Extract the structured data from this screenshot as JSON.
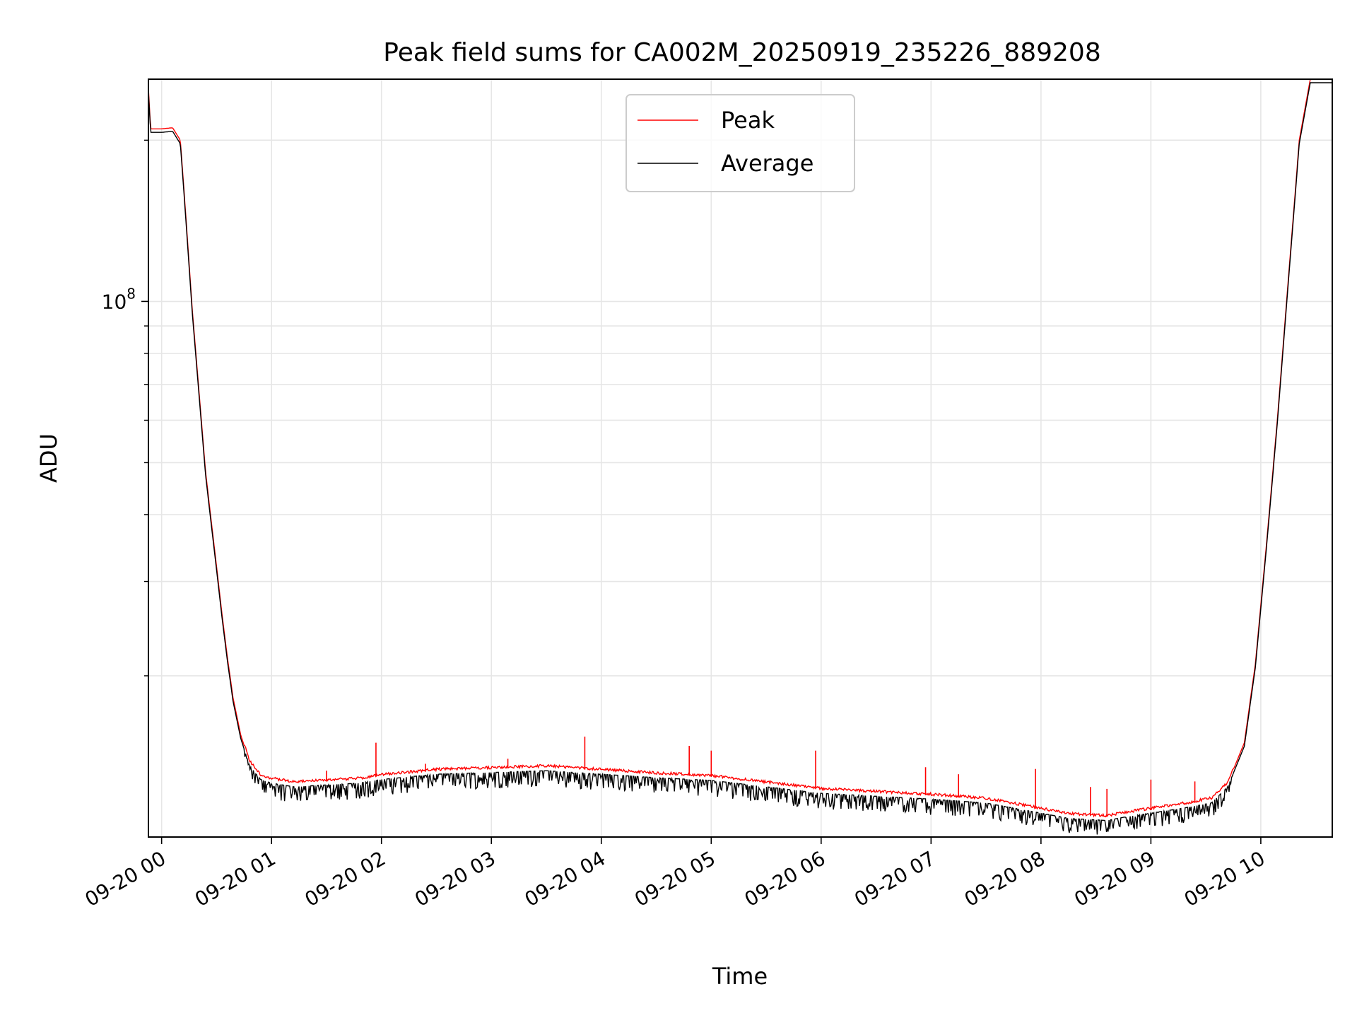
{
  "chart_data": {
    "type": "line",
    "title": "Peak field sums for CA002M_20250919_235226_889208",
    "xlabel": "Time",
    "ylabel": "ADU",
    "yscale": "log",
    "ylim": [
      10000000.0,
      260000000.0
    ],
    "xlim_hours": [
      -0.12,
      10.65
    ],
    "x_unit": "hours after 09-20 00:00",
    "grid": true,
    "legend_position": "top-center",
    "x_ticks": [
      {
        "value": 0,
        "label": "09-20 00"
      },
      {
        "value": 1,
        "label": "09-20 01"
      },
      {
        "value": 2,
        "label": "09-20 02"
      },
      {
        "value": 3,
        "label": "09-20 03"
      },
      {
        "value": 4,
        "label": "09-20 04"
      },
      {
        "value": 5,
        "label": "09-20 05"
      },
      {
        "value": 6,
        "label": "09-20 06"
      },
      {
        "value": 7,
        "label": "09-20 07"
      },
      {
        "value": 8,
        "label": "09-20 08"
      },
      {
        "value": 9,
        "label": "09-20 09"
      },
      {
        "value": 10,
        "label": "09-20 10"
      }
    ],
    "y_major_ticks": [
      {
        "value": 100000000,
        "base": "10",
        "exp": "8"
      }
    ],
    "y_minor_ticks": [
      20000000,
      30000000,
      40000000,
      50000000,
      60000000,
      70000000,
      80000000,
      90000000,
      200000000
    ],
    "series": [
      {
        "name": "Peak",
        "color": "#ff0000",
        "points": [
          [
            -0.12,
            250000000
          ],
          [
            -0.1,
            210000000
          ],
          [
            0.0,
            210000000
          ],
          [
            0.1,
            211000000
          ],
          [
            0.17,
            200000000
          ],
          [
            0.22,
            145000000
          ],
          [
            0.28,
            96000000
          ],
          [
            0.33,
            72000000
          ],
          [
            0.4,
            48000000
          ],
          [
            0.5,
            32000000
          ],
          [
            0.55,
            26000000
          ],
          [
            0.6,
            21500000
          ],
          [
            0.65,
            18200000
          ],
          [
            0.72,
            15500000
          ],
          [
            0.8,
            13800000
          ],
          [
            0.9,
            13000000
          ],
          [
            1.0,
            12800000
          ],
          [
            1.2,
            12600000
          ],
          [
            1.5,
            12700000
          ],
          [
            1.8,
            12800000
          ],
          [
            2.0,
            13000000
          ],
          [
            2.5,
            13300000
          ],
          [
            3.0,
            13400000
          ],
          [
            3.5,
            13500000
          ],
          [
            4.0,
            13300000
          ],
          [
            4.5,
            13100000
          ],
          [
            5.0,
            12950000
          ],
          [
            5.5,
            12600000
          ],
          [
            6.0,
            12250000
          ],
          [
            6.5,
            12100000
          ],
          [
            7.0,
            11950000
          ],
          [
            7.5,
            11750000
          ],
          [
            8.0,
            11250000
          ],
          [
            8.25,
            11000000
          ],
          [
            8.6,
            10900000
          ],
          [
            8.75,
            11050000
          ],
          [
            9.0,
            11250000
          ],
          [
            9.3,
            11500000
          ],
          [
            9.55,
            11750000
          ],
          [
            9.7,
            12600000
          ],
          [
            9.85,
            15000000
          ],
          [
            9.95,
            21000000
          ],
          [
            10.05,
            35000000
          ],
          [
            10.15,
            60000000
          ],
          [
            10.25,
            110000000
          ],
          [
            10.35,
            200000000
          ],
          [
            10.45,
            260000000
          ],
          [
            10.65,
            260000000
          ]
        ],
        "spikes_peak": [
          [
            1.95,
            15000000
          ],
          [
            3.85,
            15400000
          ],
          [
            4.8,
            14800000
          ],
          [
            5.0,
            14500000
          ],
          [
            5.95,
            14500000
          ],
          [
            6.95,
            13500000
          ],
          [
            7.25,
            13100000
          ],
          [
            7.95,
            13400000
          ],
          [
            8.45,
            12400000
          ],
          [
            8.6,
            12300000
          ],
          [
            9.0,
            12800000
          ],
          [
            9.4,
            12700000
          ],
          [
            1.5,
            13300000
          ],
          [
            2.4,
            13700000
          ],
          [
            3.15,
            14000000
          ]
        ]
      },
      {
        "name": "Average",
        "color": "#000000",
        "points": [
          [
            -0.12,
            250000000
          ],
          [
            -0.1,
            210000000
          ],
          [
            0.0,
            210000000
          ],
          [
            0.1,
            211000000
          ],
          [
            0.17,
            200000000
          ],
          [
            0.22,
            145000000
          ],
          [
            0.28,
            96000000
          ],
          [
            0.33,
            72000000
          ],
          [
            0.4,
            48000000
          ],
          [
            0.5,
            32000000
          ],
          [
            0.55,
            26000000
          ],
          [
            0.6,
            21500000
          ],
          [
            0.65,
            18200000
          ],
          [
            0.72,
            15500000
          ],
          [
            0.8,
            13800000
          ],
          [
            0.9,
            13000000
          ],
          [
            1.0,
            12800000
          ],
          [
            1.2,
            12600000
          ],
          [
            1.5,
            12700000
          ],
          [
            1.8,
            12800000
          ],
          [
            2.0,
            13000000
          ],
          [
            2.5,
            13300000
          ],
          [
            3.0,
            13400000
          ],
          [
            3.5,
            13500000
          ],
          [
            4.0,
            13300000
          ],
          [
            4.5,
            13100000
          ],
          [
            5.0,
            12950000
          ],
          [
            5.5,
            12600000
          ],
          [
            6.0,
            12250000
          ],
          [
            6.5,
            12100000
          ],
          [
            7.0,
            11950000
          ],
          [
            7.5,
            11750000
          ],
          [
            8.0,
            11250000
          ],
          [
            8.25,
            11000000
          ],
          [
            8.6,
            10900000
          ],
          [
            8.75,
            11050000
          ],
          [
            9.0,
            11250000
          ],
          [
            9.3,
            11500000
          ],
          [
            9.55,
            11750000
          ],
          [
            9.7,
            12600000
          ],
          [
            9.85,
            15000000
          ],
          [
            9.95,
            21000000
          ],
          [
            10.05,
            35000000
          ],
          [
            10.15,
            60000000
          ],
          [
            10.25,
            110000000
          ],
          [
            10.35,
            200000000
          ],
          [
            10.45,
            260000000
          ],
          [
            10.65,
            260000000
          ]
        ],
        "dip_band": {
          "start_hour": 0.75,
          "end_hour": 9.75,
          "min_factor": 0.92,
          "note": "dense downward noise spikes below the smooth average"
        }
      }
    ]
  }
}
